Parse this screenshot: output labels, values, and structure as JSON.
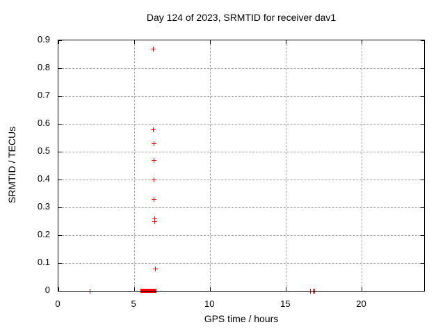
{
  "colors": {
    "marker": "#ff0000",
    "grid": "#a0a0a0",
    "axis": "#000000",
    "text": "#000000",
    "background": "#ffffff"
  },
  "chart_data": {
    "type": "scatter",
    "title": "Day 124 of 2023, SRMTID for receiver dav1",
    "xlabel": "GPS time / hours",
    "ylabel": "SRMTID / TECUs",
    "xlim": [
      0,
      24.1
    ],
    "ylim": [
      0,
      0.9
    ],
    "grid": true,
    "legend": "none",
    "marker": "plus",
    "x_ticks": [
      {
        "value": 0,
        "label": "0"
      },
      {
        "value": 5,
        "label": "5"
      },
      {
        "value": 10,
        "label": "10"
      },
      {
        "value": 15,
        "label": "15"
      },
      {
        "value": 20,
        "label": "20"
      }
    ],
    "y_ticks": [
      {
        "value": 0,
        "label": "0"
      },
      {
        "value": 0.1,
        "label": "0.1"
      },
      {
        "value": 0.2,
        "label": "0.2"
      },
      {
        "value": 0.3,
        "label": "0.3"
      },
      {
        "value": 0.4,
        "label": "0.4"
      },
      {
        "value": 0.5,
        "label": "0.5"
      },
      {
        "value": 0.6,
        "label": "0.6"
      },
      {
        "value": 0.7,
        "label": "0.7"
      },
      {
        "value": 0.8,
        "label": "0.8"
      },
      {
        "value": 0.9,
        "label": "0.9"
      }
    ],
    "series": [
      {
        "name": "SRMTID",
        "color": "#ff0000",
        "points": [
          [
            6.25,
            0.87
          ],
          [
            6.26,
            0.58
          ],
          [
            6.32,
            0.53
          ],
          [
            6.28,
            0.47
          ],
          [
            6.3,
            0.4
          ],
          [
            6.3,
            0.33
          ],
          [
            6.34,
            0.26
          ],
          [
            6.34,
            0.25
          ],
          [
            6.37,
            0.08
          ],
          [
            2.1,
            0
          ],
          [
            16.61,
            0
          ],
          [
            16.78,
            0
          ],
          [
            16.9,
            0
          ]
        ]
      }
    ],
    "zero_cluster": {
      "x_start": 5.41,
      "x_end": 6.48,
      "y": 0
    }
  }
}
